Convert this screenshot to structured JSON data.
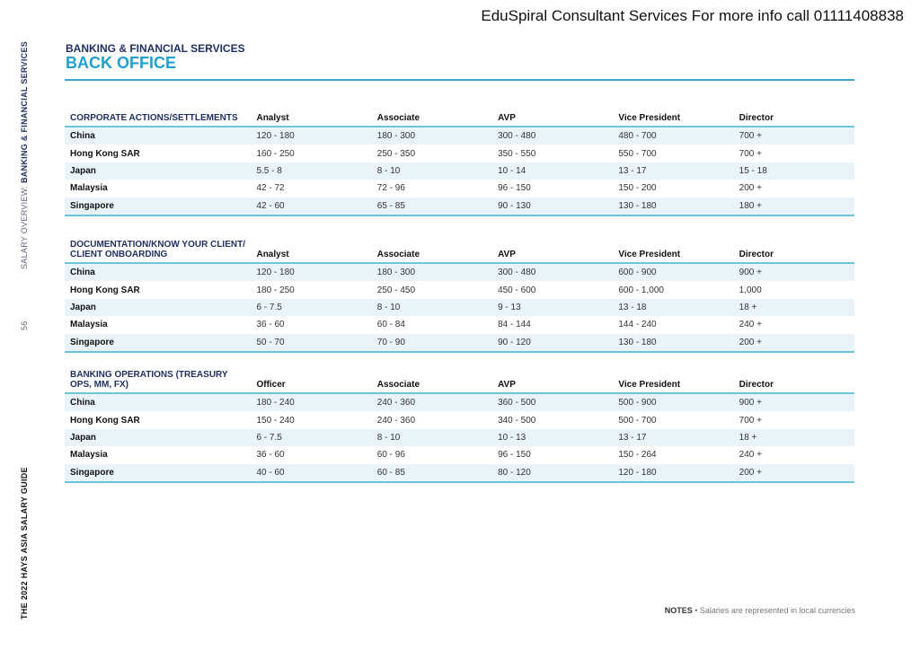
{
  "watermark": "EduSpiral Consultant Services For more info call 01111408838",
  "side": {
    "overview_prefix": "SALARY OVERVIEW: ",
    "overview_section": "BANKING & FINANCIAL SERVICES",
    "page_number": "56",
    "guide_title": "THE 2022 HAYS ASIA SALARY GUIDE"
  },
  "header": {
    "category": "BANKING & FINANCIAL SERVICES",
    "title": "BACK OFFICE"
  },
  "tables": [
    {
      "section": "CORPORATE ACTIONS/SETTLEMENTS",
      "columns": [
        "Analyst",
        "Associate",
        "AVP",
        "Vice President",
        "Director"
      ],
      "rows": [
        {
          "country": "China",
          "values": [
            "120 - 180",
            "180 - 300",
            "300 - 480",
            "480 - 700",
            "700 +"
          ]
        },
        {
          "country": "Hong Kong SAR",
          "values": [
            "160 - 250",
            "250 - 350",
            "350 - 550",
            "550 - 700",
            "700 +"
          ]
        },
        {
          "country": "Japan",
          "values": [
            "5.5 - 8",
            "8 - 10",
            "10 - 14",
            "13 - 17",
            "15 - 18"
          ]
        },
        {
          "country": "Malaysia",
          "values": [
            "42 - 72",
            "72 - 96",
            "96 - 150",
            "150 - 200",
            "200 +"
          ]
        },
        {
          "country": "Singapore",
          "values": [
            "42 - 60",
            "65 - 85",
            "90 - 130",
            "130 - 180",
            "180 +"
          ]
        }
      ]
    },
    {
      "section": "DOCUMENTATION/KNOW YOUR CLIENT/ CLIENT ONBOARDING",
      "columns": [
        "Analyst",
        "Associate",
        "AVP",
        "Vice President",
        "Director"
      ],
      "rows": [
        {
          "country": "China",
          "values": [
            "120 - 180",
            "180 - 300",
            "300 - 480",
            "600 - 900",
            "900 +"
          ]
        },
        {
          "country": "Hong Kong SAR",
          "values": [
            "180 - 250",
            "250 - 450",
            "450 - 600",
            "600 - 1,000",
            "1,000"
          ]
        },
        {
          "country": "Japan",
          "values": [
            "6 - 7.5",
            "8 - 10",
            "9 - 13",
            "13 - 18",
            "18 +"
          ]
        },
        {
          "country": "Malaysia",
          "values": [
            "36 - 60",
            "60 - 84",
            "84 - 144",
            "144 - 240",
            "240 +"
          ]
        },
        {
          "country": "Singapore",
          "values": [
            "50 - 70",
            "70 - 90",
            "90 - 120",
            "130 - 180",
            "200 +"
          ]
        }
      ]
    },
    {
      "section": "BANKING OPERATIONS (TREASURY OPS, MM, FX)",
      "columns": [
        "Officer",
        "Associate",
        "AVP",
        "Vice President",
        "Director"
      ],
      "rows": [
        {
          "country": "China",
          "values": [
            "180 - 240",
            "240 - 360",
            "360 - 500",
            "500 - 900",
            "900 +"
          ]
        },
        {
          "country": "Hong Kong SAR",
          "values": [
            "150 - 240",
            "240 - 360",
            "340 - 500",
            "500 - 700",
            "700 +"
          ]
        },
        {
          "country": "Japan",
          "values": [
            "6 - 7.5",
            "8 - 10",
            "10 - 13",
            "13 - 17",
            "18 +"
          ]
        },
        {
          "country": "Malaysia",
          "values": [
            "36 - 60",
            "60 - 96",
            "96 - 150",
            "150 - 264",
            "240 +"
          ]
        },
        {
          "country": "Singapore",
          "values": [
            "40 - 60",
            "60 - 85",
            "80 - 120",
            "120 - 180",
            "200 +"
          ]
        }
      ]
    }
  ],
  "notes": {
    "label": "NOTES",
    "text": " • Salaries are represented in local currencies"
  },
  "colors": {
    "navy": "#1f2f5f",
    "accent": "#1ea0d0",
    "row_alt": "#e8f4fa",
    "rule": "#6cc5d8"
  }
}
